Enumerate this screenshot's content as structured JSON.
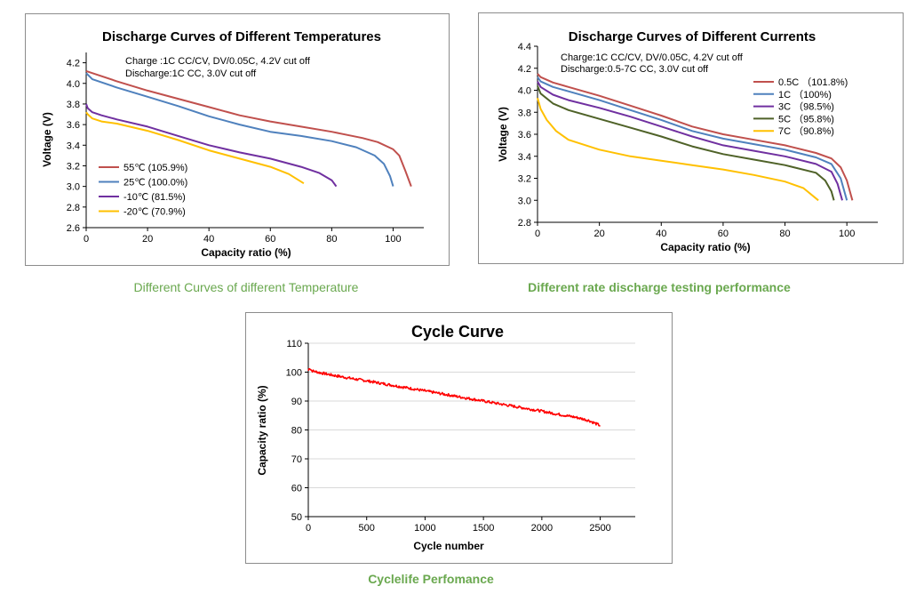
{
  "chart_data": [
    {
      "id": "temp",
      "type": "line",
      "title": "Discharge Curves of Different Temperatures",
      "annotations": [
        "Charge :1C CC/CV, DV/0.05C, 4.2V cut off",
        "Discharge:1C CC, 3.0V cut off"
      ],
      "xlabel": "Capacity ratio (%)",
      "ylabel": "Voltage (V)",
      "xlim": [
        0,
        110
      ],
      "ylim": [
        2.6,
        4.3
      ],
      "xticks": [
        0,
        20,
        40,
        60,
        80,
        100
      ],
      "yticks": [
        2.6,
        2.8,
        3.0,
        3.2,
        3.4,
        3.6,
        3.8,
        4.0,
        4.2
      ],
      "ytick_labels": [
        "2.6",
        "2.8",
        "3.0",
        "3.2",
        "3.4",
        "3.6",
        "3.8",
        "4.0",
        "4.2"
      ],
      "legend_position": "bottom-left",
      "series": [
        {
          "name": "55℃ (105.9%)",
          "color": "#c0504d",
          "x": [
            0,
            10,
            20,
            30,
            40,
            50,
            60,
            70,
            80,
            90,
            95,
            100,
            102,
            104,
            105.9
          ],
          "y": [
            4.12,
            4.02,
            3.93,
            3.85,
            3.77,
            3.69,
            3.63,
            3.58,
            3.53,
            3.47,
            3.43,
            3.36,
            3.3,
            3.15,
            3.0
          ]
        },
        {
          "name": "25℃ (100.0%)",
          "color": "#4f81bd",
          "x": [
            0,
            2,
            10,
            20,
            30,
            40,
            50,
            60,
            70,
            80,
            88,
            94,
            97,
            99,
            100
          ],
          "y": [
            4.1,
            4.04,
            3.96,
            3.87,
            3.78,
            3.68,
            3.6,
            3.53,
            3.49,
            3.44,
            3.38,
            3.3,
            3.22,
            3.1,
            3.0
          ]
        },
        {
          "name": "-10℃ (81.5%)",
          "color": "#7030a0",
          "x": [
            0,
            0.5,
            2,
            5,
            10,
            20,
            30,
            40,
            50,
            60,
            70,
            76,
            80,
            81.5
          ],
          "y": [
            3.8,
            3.76,
            3.72,
            3.69,
            3.65,
            3.58,
            3.49,
            3.4,
            3.33,
            3.27,
            3.19,
            3.13,
            3.06,
            3.0
          ]
        },
        {
          "name": "-20℃ (70.9%)",
          "color": "#ffc000",
          "x": [
            0,
            0.5,
            2,
            5,
            10,
            20,
            30,
            40,
            50,
            60,
            66,
            70.9
          ],
          "y": [
            3.72,
            3.7,
            3.66,
            3.63,
            3.61,
            3.54,
            3.45,
            3.35,
            3.27,
            3.19,
            3.12,
            3.03
          ]
        }
      ]
    },
    {
      "id": "rate",
      "type": "line",
      "title": "Discharge Curves of Different Currents",
      "annotations": [
        "Charge:1C CC/CV, DV/0.05C, 4.2V cut off",
        "Discharge:0.5-7C CC, 3.0V cut off"
      ],
      "xlabel": "Capacity ratio (%)",
      "ylabel": "Voltage (V)",
      "xlim": [
        0,
        110
      ],
      "ylim": [
        2.8,
        4.4
      ],
      "xticks": [
        0,
        20,
        40,
        60,
        80,
        100
      ],
      "yticks": [
        2.8,
        3.0,
        3.2,
        3.4,
        3.6,
        3.8,
        4.0,
        4.2,
        4.4
      ],
      "ytick_labels": [
        "2.8",
        "3.0",
        "3.2",
        "3.4",
        "3.6",
        "3.8",
        "4.0",
        "4.2",
        "4.4"
      ],
      "legend_position": "top-right",
      "series": [
        {
          "name": "0.5C （101.8%)",
          "color": "#c0504d",
          "x": [
            0,
            1,
            5,
            10,
            20,
            30,
            40,
            50,
            60,
            70,
            80,
            90,
            95,
            98,
            100,
            101.8
          ],
          "y": [
            4.15,
            4.12,
            4.07,
            4.03,
            3.95,
            3.86,
            3.77,
            3.67,
            3.6,
            3.55,
            3.5,
            3.43,
            3.38,
            3.3,
            3.18,
            3.0
          ]
        },
        {
          "name": "1C （100%)",
          "color": "#4f81bd",
          "x": [
            0,
            1,
            5,
            10,
            20,
            30,
            40,
            50,
            60,
            70,
            80,
            90,
            95,
            98,
            100
          ],
          "y": [
            4.12,
            4.08,
            4.03,
            3.99,
            3.91,
            3.82,
            3.73,
            3.63,
            3.56,
            3.51,
            3.46,
            3.39,
            3.33,
            3.2,
            3.0
          ]
        },
        {
          "name": "3C （98.5%)",
          "color": "#7030a0",
          "x": [
            0,
            1,
            5,
            10,
            20,
            30,
            40,
            50,
            60,
            70,
            80,
            90,
            95,
            97,
            98.5
          ],
          "y": [
            4.08,
            4.03,
            3.96,
            3.91,
            3.84,
            3.76,
            3.67,
            3.58,
            3.5,
            3.45,
            3.4,
            3.33,
            3.26,
            3.15,
            3.0
          ]
        },
        {
          "name": "5C （95.8%)",
          "color": "#4f6228",
          "x": [
            0,
            1,
            5,
            10,
            20,
            30,
            40,
            50,
            60,
            70,
            80,
            90,
            93,
            95,
            95.8
          ],
          "y": [
            4.04,
            3.97,
            3.88,
            3.82,
            3.74,
            3.66,
            3.58,
            3.49,
            3.42,
            3.37,
            3.32,
            3.25,
            3.18,
            3.08,
            3.0
          ]
        },
        {
          "name": "7C （90.8%)",
          "color": "#ffc000",
          "x": [
            0,
            1,
            3,
            6,
            10,
            20,
            30,
            40,
            50,
            60,
            70,
            80,
            86,
            90.8
          ],
          "y": [
            3.93,
            3.83,
            3.73,
            3.63,
            3.55,
            3.46,
            3.4,
            3.36,
            3.32,
            3.28,
            3.23,
            3.17,
            3.11,
            3.0
          ]
        }
      ]
    },
    {
      "id": "cycle",
      "type": "line",
      "title": "Cycle Curve",
      "xlabel": "Cycle number",
      "ylabel": "Capacity ratio (%)",
      "xlim": [
        0,
        2800
      ],
      "ylim": [
        50,
        110
      ],
      "xticks": [
        0,
        500,
        1000,
        1500,
        2000,
        2500
      ],
      "yticks": [
        50,
        60,
        70,
        80,
        90,
        100,
        110
      ],
      "ytick_labels": [
        "50",
        "60",
        "70",
        "80",
        "90",
        "100",
        "110"
      ],
      "series": [
        {
          "name": "Cycle",
          "color": "#ff0000",
          "x": [
            0,
            10,
            30,
            60,
            100,
            200,
            300,
            400,
            500,
            600,
            700,
            800,
            900,
            1000,
            1100,
            1200,
            1300,
            1400,
            1500,
            1600,
            1700,
            1800,
            1900,
            2000,
            2100,
            2200,
            2300,
            2400,
            2500
          ],
          "y": [
            100.5,
            101.5,
            100.5,
            100.2,
            99.8,
            99.0,
            98.3,
            97.6,
            97.0,
            96.3,
            95.6,
            94.9,
            94.2,
            93.5,
            92.8,
            92.1,
            91.4,
            90.7,
            90.0,
            89.3,
            88.6,
            87.9,
            87.2,
            86.5,
            85.7,
            85.0,
            84.3,
            83.3,
            81.5
          ]
        }
      ]
    }
  ],
  "captions": {
    "temp": "Different Curves of  different Temperature",
    "rate": "Different rate discharge testing performance",
    "cycle": "Cyclelife Perfomance"
  }
}
